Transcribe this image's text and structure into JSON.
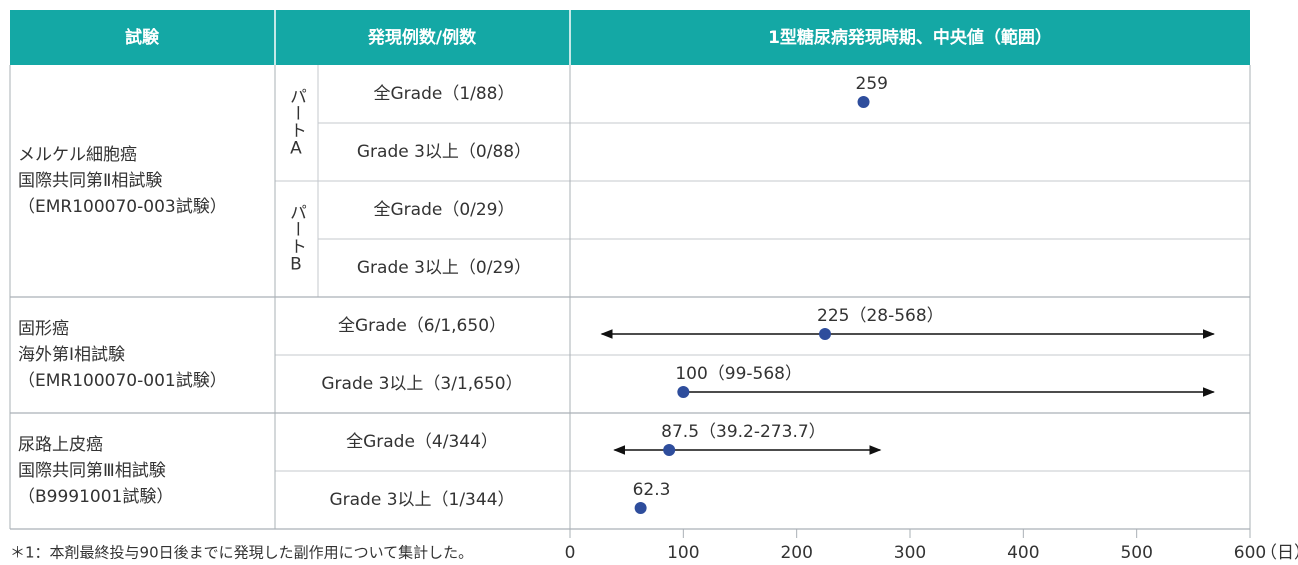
{
  "table": {
    "header": [
      "試験",
      "発現例数/例数",
      "1型糖尿病発現時期、中央値（範囲）"
    ],
    "trials": [
      {
        "name": [
          "メルケル細胞癌",
          "国際共同第Ⅱ相試験",
          "（EMR100070-003試験）"
        ],
        "parts": [
          {
            "label": "パートA",
            "rows": [
              "全Grade（1/88）",
              "Grade 3以上（0/88）"
            ]
          },
          {
            "label": "パートB",
            "rows": [
              "全Grade（0/29）",
              "Grade 3以上（0/29）"
            ]
          }
        ]
      },
      {
        "name": [
          "固形癌",
          "海外第Ⅰ相試験",
          "（EMR100070-001試験）"
        ],
        "rows": [
          "全Grade（6/1,650）",
          "Grade 3以上（3/1,650）"
        ]
      },
      {
        "name": [
          "尿路上皮癌",
          "国際共同第Ⅲ相試験",
          "（B9991001試験）"
        ],
        "rows": [
          "全Grade（4/344）",
          "Grade 3以上（1/344）"
        ]
      }
    ],
    "footnote": "＊1：本剤最終投与90日後までに発現した副作用について集計した。"
  },
  "chart_data": {
    "type": "dot",
    "values": [
      259,
      null,
      null,
      null,
      225,
      100,
      87.5,
      62.3
    ],
    "value_labels": [
      "259",
      null,
      null,
      null,
      "225（28-568）",
      "100（99-568）",
      "87.5（39.2-273.7）",
      "62.3"
    ],
    "range_low": [
      null,
      null,
      null,
      null,
      28,
      99,
      39.2,
      null
    ],
    "range_high": [
      null,
      null,
      null,
      null,
      568,
      568,
      273.7,
      null
    ],
    "color": "#2e4d9c",
    "xlim": [
      0,
      600
    ],
    "xticks": [
      0,
      100,
      200,
      300,
      400,
      500,
      600
    ],
    "x_unit": "（日）"
  }
}
